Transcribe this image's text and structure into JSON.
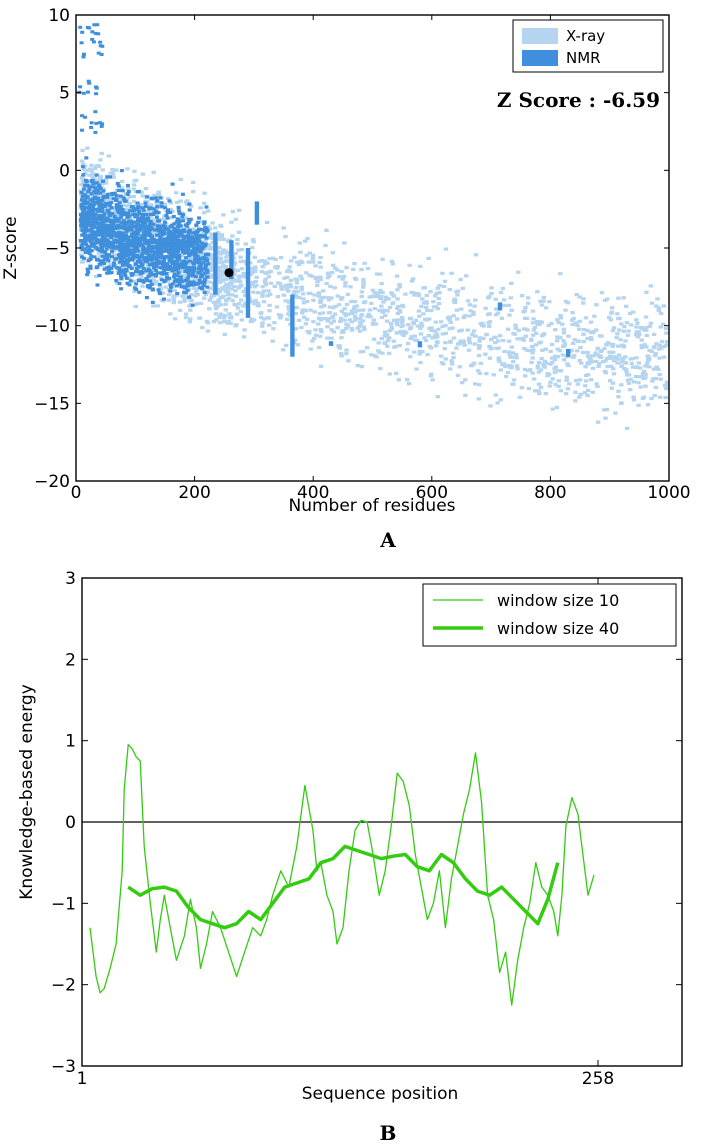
{
  "chart_data": [
    {
      "type": "scatter",
      "xlabel": "Number of residues",
      "ylabel": "Z-score",
      "xlim": [
        0,
        1000
      ],
      "ylim": [
        -20,
        10
      ],
      "xticks": [
        "0",
        "200",
        "400",
        "600",
        "800",
        "1000"
      ],
      "yticks": [
        "10",
        "5",
        "0",
        "−5",
        "−10",
        "−15",
        "−20"
      ],
      "legend": {
        "position": "top-right",
        "entries": [
          "X-ray",
          "NMR"
        ]
      },
      "annotation": "Z Score : -6.59",
      "panel_label": "A",
      "colors": {
        "xray": "#b4d4f0",
        "nmr": "#3f8fdc",
        "highlight": "#000000"
      },
      "series": [
        {
          "name": "X-ray",
          "trend": [
            [
              0,
              -2
            ],
            [
              200,
              -6
            ],
            [
              400,
              -8.5
            ],
            [
              600,
              -10
            ],
            [
              800,
              -11.2
            ],
            [
              1000,
              -12
            ]
          ]
        },
        {
          "name": "NMR",
          "trend": [
            [
              0,
              -3
            ],
            [
              100,
              -4.5
            ],
            [
              200,
              -5.5
            ]
          ]
        }
      ],
      "highlight_point": {
        "x": 258,
        "y": -6.59
      }
    },
    {
      "type": "line",
      "xlabel": "Sequence position",
      "ylabel": "Knowledge-based energy",
      "xlim": [
        1,
        258
      ],
      "ylim": [
        -3,
        3
      ],
      "xticks": [
        "1",
        "258"
      ],
      "yticks": [
        "3",
        "2",
        "1",
        "0",
        "−1",
        "−2",
        "−3"
      ],
      "legend": {
        "position": "top-right",
        "entries": [
          "window size 10",
          "window size 40"
        ]
      },
      "panel_label": "B",
      "colors": {
        "line": "#33cc11",
        "zero": "#000000"
      },
      "series": [
        {
          "name": "window size 10",
          "x": [
            5,
            8,
            10,
            12,
            15,
            18,
            21,
            22,
            24,
            26,
            28,
            30,
            32,
            35,
            38,
            40,
            42,
            45,
            48,
            52,
            55,
            58,
            60,
            63,
            66,
            70,
            74,
            78,
            82,
            86,
            90,
            93,
            96,
            100,
            104,
            108,
            112,
            116,
            118,
            120,
            123,
            126,
            128,
            131,
            134,
            137,
            140,
            143,
            146,
            149,
            152,
            155,
            158,
            161,
            164,
            167,
            170,
            173,
            176,
            179,
            182,
            185,
            188,
            191,
            194,
            197,
            200,
            203,
            206,
            209,
            212,
            215,
            218,
            221,
            224,
            227,
            230,
            233,
            236,
            238,
            240,
            242,
            245,
            248,
            250,
            253,
            256
          ],
          "y": [
            -1.3,
            -1.9,
            -2.1,
            -2.05,
            -1.8,
            -1.5,
            -0.6,
            0.4,
            0.95,
            0.9,
            0.8,
            0.75,
            -0.3,
            -1.0,
            -1.6,
            -1.2,
            -0.9,
            -1.3,
            -1.7,
            -1.4,
            -0.95,
            -1.3,
            -1.8,
            -1.5,
            -1.1,
            -1.3,
            -1.6,
            -1.9,
            -1.6,
            -1.3,
            -1.4,
            -1.2,
            -0.9,
            -0.6,
            -0.8,
            -0.3,
            0.45,
            -0.1,
            -0.6,
            -0.5,
            -0.9,
            -1.1,
            -1.5,
            -1.3,
            -0.6,
            -0.1,
            0.02,
            0.0,
            -0.4,
            -0.9,
            -0.6,
            -0.05,
            0.6,
            0.5,
            0.2,
            -0.4,
            -0.8,
            -1.2,
            -1.0,
            -0.6,
            -1.3,
            -0.7,
            -0.3,
            0.1,
            0.4,
            0.85,
            0.25,
            -0.9,
            -1.2,
            -1.85,
            -1.6,
            -2.25,
            -1.7,
            -1.3,
            -1.0,
            -0.5,
            -0.8,
            -0.9,
            -1.1,
            -1.4,
            -0.9,
            -0.05,
            0.3,
            0.1,
            -0.3,
            -0.9,
            -0.65
          ]
        },
        {
          "name": "window size 40",
          "x": [
            24,
            30,
            36,
            42,
            48,
            54,
            60,
            66,
            72,
            78,
            84,
            90,
            96,
            102,
            108,
            114,
            120,
            126,
            132,
            138,
            144,
            150,
            156,
            162,
            168,
            174,
            180,
            186,
            192,
            198,
            204,
            210,
            216,
            222,
            228,
            233,
            238
          ],
          "y": [
            -0.8,
            -0.9,
            -0.82,
            -0.8,
            -0.85,
            -1.05,
            -1.2,
            -1.25,
            -1.3,
            -1.25,
            -1.1,
            -1.2,
            -1.0,
            -0.8,
            -0.75,
            -0.7,
            -0.5,
            -0.45,
            -0.3,
            -0.35,
            -0.4,
            -0.45,
            -0.42,
            -0.4,
            -0.55,
            -0.6,
            -0.4,
            -0.5,
            -0.7,
            -0.85,
            -0.9,
            -0.8,
            -0.95,
            -1.1,
            -1.25,
            -0.95,
            -0.5
          ]
        }
      ]
    }
  ]
}
